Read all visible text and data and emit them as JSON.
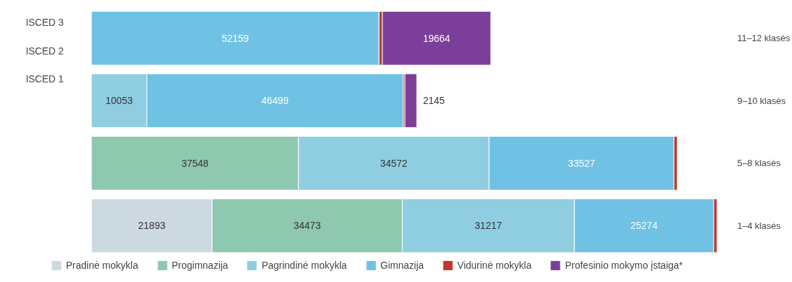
{
  "chart_data": {
    "type": "bar",
    "orientation": "horizontal",
    "stacked": true,
    "categories": [
      "11–12 klasės",
      "9–10 klasės",
      "5–8 klasės",
      "1–4 klasės"
    ],
    "series": [
      {
        "name": "Pradinė mokykla",
        "color": "#cdd9e1",
        "values": [
          null,
          null,
          null,
          21893
        ],
        "value_labels": [
          null,
          null,
          null,
          "21893"
        ]
      },
      {
        "name": "Progimnazija",
        "color": "#8ec8ae",
        "values": [
          null,
          null,
          37548,
          34473
        ],
        "value_labels": [
          null,
          null,
          "37548",
          "34473"
        ]
      },
      {
        "name": "Pagrindinė mokykla",
        "color": "#8fcde0",
        "values": [
          null,
          10053,
          34572,
          31217
        ],
        "value_labels": [
          null,
          "10053",
          "34572",
          "31217"
        ]
      },
      {
        "name": "Gimnazija",
        "color": "#6fc2e3",
        "values": [
          52159,
          46499,
          33527,
          25274
        ],
        "value_labels": [
          "52159",
          "46499",
          "33527",
          "25274"
        ]
      },
      {
        "name": "Vidurinė mokykla",
        "color": "#c0392f",
        "values": [
          600,
          300,
          600,
          600
        ],
        "value_labels": [
          null,
          null,
          null,
          null
        ]
      },
      {
        "name": "Profesinio mokymo įstaiga*",
        "color": "#7b3f99",
        "values": [
          19664,
          2145,
          null,
          null
        ],
        "value_labels": [
          "19664",
          "2145",
          null,
          null
        ]
      }
    ],
    "legend": "bottom",
    "grid": false,
    "annotations": [
      "ISCED 3",
      "ISCED 2",
      "ISCED 1"
    ]
  }
}
